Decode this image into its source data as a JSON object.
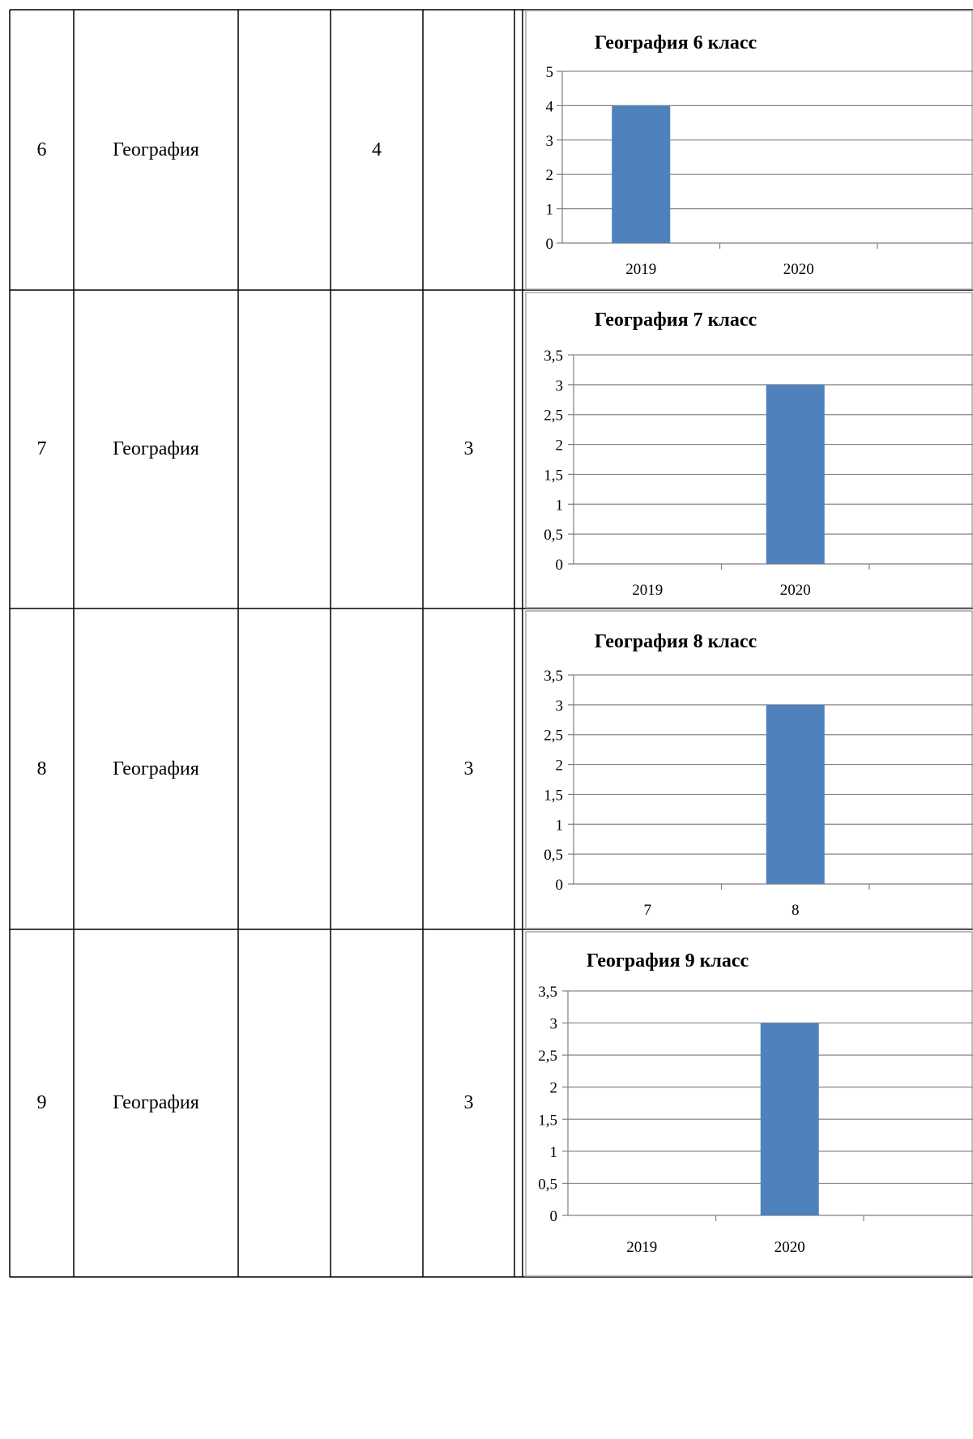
{
  "table": {
    "rows": [
      {
        "num": "6",
        "subject": "География",
        "col3": "",
        "col4": "4",
        "col5": ""
      },
      {
        "num": "7",
        "subject": "География",
        "col3": "",
        "col4": "",
        "col5": "3"
      },
      {
        "num": "8",
        "subject": "География",
        "col3": "",
        "col4": "",
        "col5": "3"
      },
      {
        "num": "9",
        "subject": "География",
        "col3": "",
        "col4": "",
        "col5": "3"
      }
    ]
  },
  "colors": {
    "bar": "#4f81bd",
    "gridline": "#868686",
    "border": "#000000",
    "frame": "#a6a6a6"
  },
  "chart_data": [
    {
      "type": "bar",
      "title": "География 6 класс",
      "categories": [
        "2019",
        "2020"
      ],
      "values": [
        4,
        0
      ],
      "ylim": [
        0,
        5
      ],
      "yticks": [
        "0",
        "1",
        "2",
        "3",
        "4",
        "5"
      ],
      "grid": true
    },
    {
      "type": "bar",
      "title": "География 7 класс",
      "categories": [
        "2019",
        "2020"
      ],
      "values": [
        0,
        3
      ],
      "ylim": [
        0,
        3.5
      ],
      "yticks": [
        "0",
        "0,5",
        "1",
        "1,5",
        "2",
        "2,5",
        "3",
        "3,5"
      ],
      "grid": true
    },
    {
      "type": "bar",
      "title": "География 8 класс",
      "categories": [
        "7",
        "8"
      ],
      "values": [
        0,
        3
      ],
      "ylim": [
        0,
        3.5
      ],
      "yticks": [
        "0",
        "0,5",
        "1",
        "1,5",
        "2",
        "2,5",
        "3",
        "3,5"
      ],
      "grid": true
    },
    {
      "type": "bar",
      "title": "География 9 класс",
      "categories": [
        "2019",
        "2020"
      ],
      "values": [
        0,
        3
      ],
      "ylim": [
        0,
        3.5
      ],
      "yticks": [
        "0",
        "0,5",
        "1",
        "1,5",
        "2",
        "2,5",
        "3",
        "3,5"
      ],
      "grid": true
    }
  ]
}
